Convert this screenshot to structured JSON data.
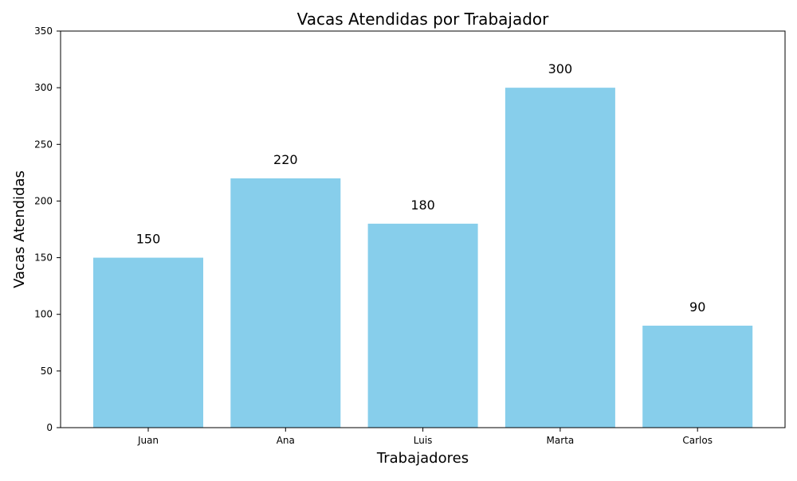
{
  "chart_data": {
    "type": "bar",
    "title": "Vacas Atendidas por Trabajador",
    "xlabel": "Trabajadores",
    "ylabel": "Vacas Atendidas",
    "categories": [
      "Juan",
      "Ana",
      "Luis",
      "Marta",
      "Carlos"
    ],
    "values": [
      150,
      220,
      180,
      300,
      90
    ],
    "data_labels": [
      "150",
      "220",
      "180",
      "300",
      "90"
    ],
    "ylim": [
      0,
      350
    ],
    "yticks": [
      0,
      50,
      100,
      150,
      200,
      250,
      300,
      350
    ],
    "grid": false,
    "bar_color": "#87CEEB"
  }
}
